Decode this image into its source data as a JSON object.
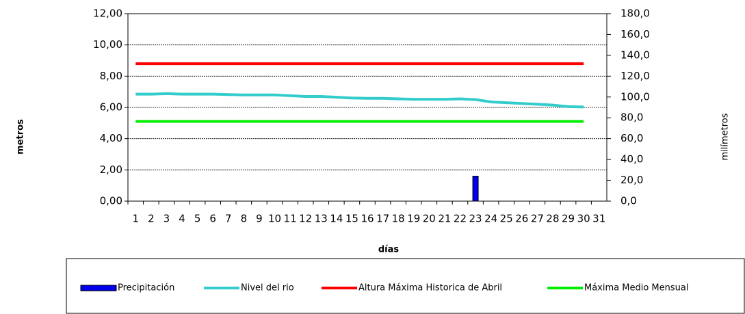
{
  "chart_data": {
    "type": "bar-line",
    "ylabel": "metros",
    "y2label": "milímetros",
    "xlabel": "días",
    "categories": [
      "1",
      "2",
      "3",
      "4",
      "5",
      "6",
      "7",
      "8",
      "9",
      "10",
      "11",
      "12",
      "13",
      "14",
      "15",
      "16",
      "17",
      "18",
      "19",
      "20",
      "21",
      "22",
      "23",
      "24",
      "25",
      "26",
      "27",
      "28",
      "29",
      "30",
      "31"
    ],
    "ylim": [
      0,
      12
    ],
    "yticks": [
      {
        "value": 0,
        "label": "0,00"
      },
      {
        "value": 2,
        "label": "2,00"
      },
      {
        "value": 4,
        "label": "4,00"
      },
      {
        "value": 6,
        "label": "6,00"
      },
      {
        "value": 8,
        "label": "8,00"
      },
      {
        "value": 10,
        "label": "10,00"
      },
      {
        "value": 12,
        "label": "12,00"
      }
    ],
    "y2lim": [
      0,
      180
    ],
    "y2ticks": [
      {
        "value": 0,
        "label": "0,0"
      },
      {
        "value": 20,
        "label": "20,0"
      },
      {
        "value": 40,
        "label": "40,0"
      },
      {
        "value": 60,
        "label": "60,0"
      },
      {
        "value": 80,
        "label": "80,0"
      },
      {
        "value": 100,
        "label": "100,0"
      },
      {
        "value": 120,
        "label": "120,0"
      },
      {
        "value": 140,
        "label": "140,0"
      },
      {
        "value": 160,
        "label": "160,0"
      },
      {
        "value": 180,
        "label": "180,0"
      }
    ],
    "grid": true,
    "legend": "bottom",
    "series": [
      {
        "name": "Precipitación",
        "type": "bar",
        "axis": "y2",
        "color": "#0000ee",
        "values": [
          null,
          null,
          null,
          null,
          null,
          null,
          null,
          null,
          null,
          null,
          null,
          null,
          null,
          null,
          null,
          null,
          null,
          null,
          null,
          null,
          null,
          null,
          24,
          null,
          null,
          null,
          null,
          null,
          null,
          null,
          null
        ]
      },
      {
        "name": "Nivel del rio",
        "type": "line",
        "color": "#33cccc",
        "values": [
          6.85,
          6.85,
          6.88,
          6.85,
          6.85,
          6.85,
          6.82,
          6.8,
          6.8,
          6.8,
          6.75,
          6.7,
          6.7,
          6.65,
          6.6,
          6.58,
          6.58,
          6.55,
          6.52,
          6.52,
          6.52,
          6.55,
          6.5,
          6.35,
          6.3,
          6.25,
          6.2,
          6.15,
          6.05,
          6.03,
          null
        ]
      },
      {
        "name": "Altura Máxima Historica de Abril",
        "type": "line",
        "color": "#ff0000",
        "values": [
          8.8,
          8.8,
          8.8,
          8.8,
          8.8,
          8.8,
          8.8,
          8.8,
          8.8,
          8.8,
          8.8,
          8.8,
          8.8,
          8.8,
          8.8,
          8.8,
          8.8,
          8.8,
          8.8,
          8.8,
          8.8,
          8.8,
          8.8,
          8.8,
          8.8,
          8.8,
          8.8,
          8.8,
          8.8,
          8.8,
          null
        ]
      },
      {
        "name": "Máxima Medio Mensual",
        "type": "line",
        "color": "#00ee00",
        "values": [
          5.1,
          5.1,
          5.1,
          5.1,
          5.1,
          5.1,
          5.1,
          5.1,
          5.1,
          5.1,
          5.1,
          5.1,
          5.1,
          5.1,
          5.1,
          5.1,
          5.1,
          5.1,
          5.1,
          5.1,
          5.1,
          5.1,
          5.1,
          5.1,
          5.1,
          5.1,
          5.1,
          5.1,
          5.1,
          5.1,
          null
        ]
      }
    ]
  }
}
